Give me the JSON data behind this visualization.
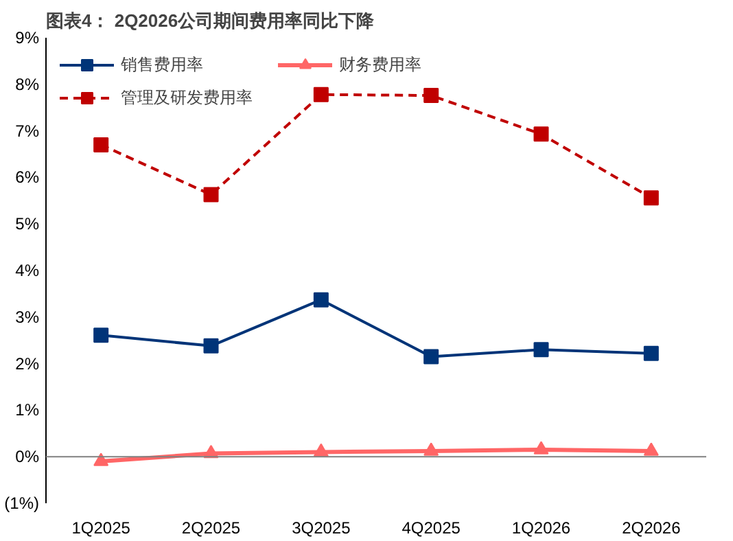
{
  "chart_data": {
    "type": "line",
    "title": "图表4：  2Q2026公司期间费用率同比下降",
    "categories": [
      "1Q2025",
      "2Q2025",
      "3Q2025",
      "4Q2025",
      "1Q2026",
      "2Q2026"
    ],
    "series": [
      {
        "name": "销售费用率",
        "color": "#003478",
        "values": [
          2.61,
          2.38,
          3.37,
          2.15,
          2.3,
          2.22
        ],
        "marker": "square",
        "line_style": "solid"
      },
      {
        "name": "管理及研发费用率",
        "color": "#c00000",
        "values": [
          6.7,
          5.63,
          7.78,
          7.76,
          6.93,
          5.56
        ],
        "marker": "square",
        "line_style": "dashed"
      },
      {
        "name": "财务费用率",
        "color": "#ff6666",
        "values": [
          -0.1,
          0.07,
          0.1,
          0.12,
          0.15,
          0.12
        ],
        "marker": "triangle",
        "line_style": "solid"
      }
    ],
    "ylim": [
      -1,
      9
    ],
    "yticks": [
      {
        "value": -1,
        "label": "(1%)"
      },
      {
        "value": 0,
        "label": "0%"
      },
      {
        "value": 1,
        "label": "1%"
      },
      {
        "value": 2,
        "label": "2%"
      },
      {
        "value": 3,
        "label": "3%"
      },
      {
        "value": 4,
        "label": "4%"
      },
      {
        "value": 5,
        "label": "5%"
      },
      {
        "value": 6,
        "label": "6%"
      },
      {
        "value": 7,
        "label": "7%"
      },
      {
        "value": 8,
        "label": "8%"
      },
      {
        "value": 9,
        "label": "9%"
      }
    ],
    "ref_lines": [
      {
        "axis": "y",
        "value": 0,
        "color": "#808080"
      }
    ],
    "legend": "top left",
    "grid": false
  }
}
